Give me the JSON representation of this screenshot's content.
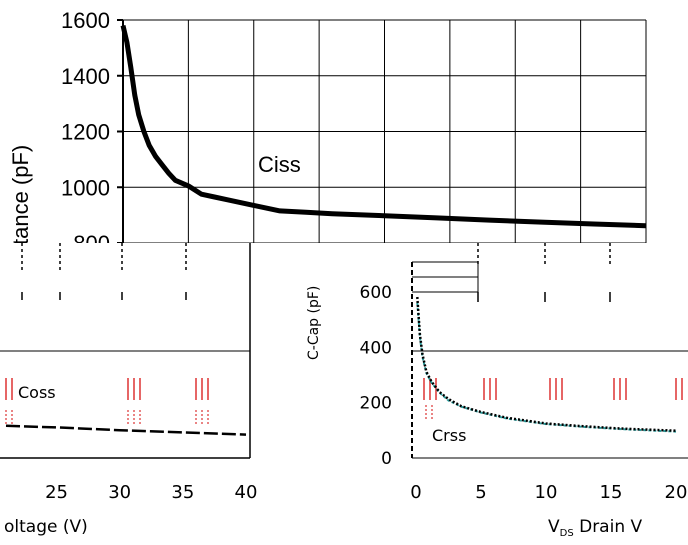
{
  "chart_data": [
    {
      "type": "line",
      "title": "",
      "ylabel": "tance (pF)",
      "xlabel": "",
      "ylim": [
        800,
        1600
      ],
      "yticks": [
        "1600",
        "1400",
        "1200",
        "1000",
        "800"
      ],
      "grid": true,
      "series": [
        {
          "name": "Ciss",
          "color": "#000000",
          "x": [
            0,
            0.15,
            0.3,
            0.45,
            0.6,
            0.8,
            1.0,
            1.25,
            1.5,
            1.75,
            2,
            2.5,
            3,
            3.5,
            4,
            5,
            6,
            7,
            8,
            10,
            12,
            14,
            16,
            18,
            20
          ],
          "y": [
            1580,
            1520,
            1430,
            1330,
            1260,
            1200,
            1150,
            1110,
            1080,
            1050,
            1025,
            1005,
            975,
            965,
            955,
            935,
            915,
            910,
            905,
            898,
            890,
            882,
            875,
            868,
            862
          ]
        }
      ]
    },
    {
      "type": "line",
      "title": "",
      "xlabel": "oltage (V)",
      "xticks": [
        "25",
        "30",
        "35",
        "40"
      ],
      "xlim": [
        21,
        40
      ],
      "grid": true,
      "series": [
        {
          "name": "Coss",
          "color": "#000000",
          "x": [
            21,
            25,
            30,
            35,
            40
          ],
          "y": [
            120,
            117,
            112,
            108,
            104
          ]
        }
      ]
    },
    {
      "type": "line",
      "title": "",
      "ylabel": "C-Cap (pF)",
      "xlabel": "VDS Drain V",
      "xticks": [
        "0",
        "5",
        "10",
        "15",
        "20"
      ],
      "yticks": [
        "600",
        "400",
        "200",
        "0"
      ],
      "xlim": [
        0,
        20
      ],
      "ylim": [
        0,
        600
      ],
      "grid": true,
      "series": [
        {
          "name": "Crss",
          "color": "#000000",
          "x": [
            0.1,
            0.3,
            0.5,
            0.8,
            1.2,
            1.8,
            2.5,
            3.5,
            5,
            7,
            10,
            13,
            16,
            20
          ],
          "y": [
            560,
            430,
            360,
            300,
            265,
            230,
            205,
            180,
            160,
            140,
            120,
            110,
            102,
            95
          ]
        },
        {
          "name": "",
          "color": "#2a9d9d",
          "x": [
            0.1,
            0.3,
            0.5,
            0.8,
            1.2,
            1.8,
            2.5,
            3.5,
            5,
            7,
            10,
            13,
            16,
            20
          ],
          "y": [
            540,
            420,
            350,
            295,
            262,
            228,
            200,
            178,
            158,
            137,
            118,
            108,
            100,
            92
          ]
        }
      ]
    }
  ],
  "labels": {
    "ciss": "Ciss",
    "coss": "Coss",
    "crss": "Crss",
    "vds_prefix": "V",
    "vds_sub": "DS",
    "vds_suffix": " Drain V"
  }
}
